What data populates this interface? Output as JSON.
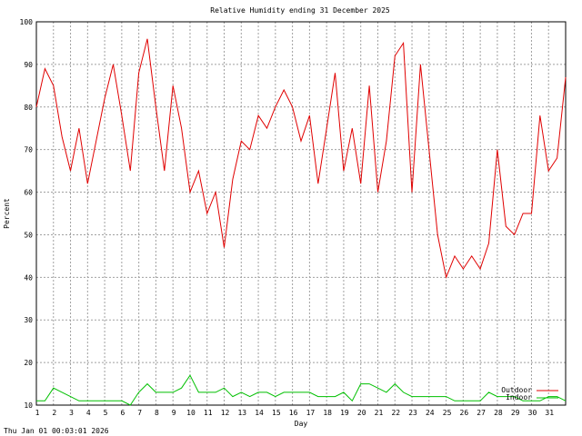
{
  "chart_data": {
    "type": "line",
    "title": "Relative Humidity ending 31 December 2025",
    "y_label": "Percent",
    "x_label": "Day",
    "footer": "Thu Jan 01 00:03:01 2026",
    "x": [
      1,
      1.5,
      2,
      2.5,
      3,
      3.5,
      4,
      4.5,
      5,
      5.5,
      6,
      6.5,
      7,
      7.5,
      8,
      8.5,
      9,
      9.5,
      10,
      10.5,
      11,
      11.5,
      12,
      12.5,
      13,
      13.5,
      14,
      14.5,
      15,
      15.5,
      16,
      16.5,
      17,
      17.5,
      18,
      18.5,
      19,
      19.5,
      20,
      20.5,
      21,
      21.5,
      22,
      22.5,
      23,
      23.5,
      24,
      24.5,
      25,
      25.5,
      26,
      26.5,
      27,
      27.5,
      28,
      28.5,
      29,
      29.5,
      30,
      30.5,
      31,
      31.5,
      32
    ],
    "series": [
      {
        "name": "Outdoor",
        "color": "#e00000",
        "values": [
          80,
          89,
          85,
          73,
          65,
          75,
          62,
          72,
          82,
          90,
          78,
          65,
          88,
          96,
          80,
          65,
          85,
          75,
          60,
          65,
          55,
          60,
          47,
          63,
          72,
          70,
          78,
          75,
          80,
          84,
          80,
          72,
          78,
          62,
          75,
          88,
          65,
          75,
          62,
          85,
          60,
          72,
          92,
          95,
          60,
          90,
          70,
          50,
          40,
          45,
          42,
          45,
          42,
          48,
          70,
          52,
          50,
          55,
          55,
          78,
          65,
          68,
          87
        ]
      },
      {
        "name": "Indoor",
        "color": "#00c000",
        "values": [
          11,
          11,
          14,
          13,
          12,
          11,
          11,
          11,
          11,
          11,
          11,
          10,
          13,
          15,
          13,
          13,
          13,
          14,
          17,
          13,
          13,
          13,
          14,
          12,
          13,
          12,
          13,
          13,
          12,
          13,
          13,
          13,
          13,
          12,
          12,
          12,
          13,
          11,
          15,
          15,
          14,
          13,
          15,
          13,
          12,
          12,
          12,
          12,
          12,
          11,
          11,
          11,
          11,
          13,
          12,
          12,
          12,
          11,
          11,
          11,
          12,
          12,
          11
        ]
      }
    ],
    "xlim": [
      1,
      32
    ],
    "xticks": [
      1,
      2,
      3,
      4,
      5,
      6,
      7,
      8,
      9,
      10,
      11,
      12,
      13,
      14,
      15,
      16,
      17,
      18,
      19,
      20,
      21,
      22,
      23,
      24,
      25,
      26,
      27,
      28,
      29,
      30,
      31
    ],
    "ylim": [
      10,
      100
    ],
    "yticks": [
      10,
      20,
      30,
      40,
      50,
      60,
      70,
      80,
      90,
      100
    ],
    "grid": true,
    "legend": "lower right"
  }
}
